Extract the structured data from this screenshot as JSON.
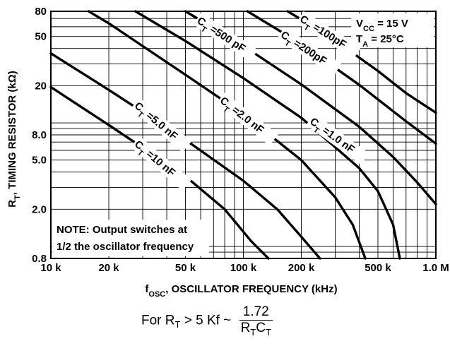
{
  "chart_data": {
    "type": "line",
    "x_scale": "log",
    "y_scale": "log",
    "xlim": [
      10,
      1000
    ],
    "ylim": [
      0.8,
      80
    ],
    "x_ticks": [
      {
        "value": 10,
        "label": "10 k"
      },
      {
        "value": 20,
        "label": "20 k"
      },
      {
        "value": 50,
        "label": "50 k"
      },
      {
        "value": 100,
        "label": "100 k"
      },
      {
        "value": 200,
        "label": "200 k"
      },
      {
        "value": 500,
        "label": "500 k"
      },
      {
        "value": 1000,
        "label": "1.0 M"
      }
    ],
    "y_ticks": [
      {
        "value": 80,
        "label": "80"
      },
      {
        "value": 50,
        "label": "50"
      },
      {
        "value": 20,
        "label": "20"
      },
      {
        "value": 8,
        "label": "8.0"
      },
      {
        "value": 5,
        "label": "5.0"
      },
      {
        "value": 2,
        "label": "2.0"
      },
      {
        "value": 0.8,
        "label": "0.8"
      }
    ],
    "xlabel": {
      "main": "f",
      "sub": "OSC",
      "rest": ", OSCILLATOR FREQUENCY (kHz)"
    },
    "ylabel": {
      "main": "R",
      "sub": "T",
      "rest": ", TIMING RESISTOR (kΩ)"
    },
    "grid": true,
    "conditions": [
      {
        "main": "V",
        "sub": "CC",
        "rest": " = 15 V"
      },
      {
        "main": "T",
        "sub": "A",
        "rest": " = 25°C"
      }
    ],
    "note": [
      "NOTE: Output switches at",
      "1/2 the oscillator frequency"
    ],
    "series": [
      {
        "name": "10 nF",
        "x": [
          10,
          20,
          50,
          80,
          110,
          135
        ],
        "y": [
          19.5,
          9.6,
          3.7,
          2.0,
          1.1,
          0.8
        ]
      },
      {
        "name": "5.0 nF",
        "x": [
          10,
          20,
          50,
          100,
          150,
          200,
          250
        ],
        "y": [
          36.5,
          18.5,
          7.3,
          3.4,
          2.0,
          1.2,
          0.8
        ]
      },
      {
        "name": "2.0 nF",
        "x": [
          15.7,
          20,
          50,
          100,
          200,
          300,
          370,
          430
        ],
        "y": [
          80,
          64,
          24.5,
          11.8,
          5.0,
          2.5,
          1.5,
          0.8
        ]
      },
      {
        "name": "1.0 nF",
        "x": [
          27.5,
          50,
          100,
          200,
          400,
          500,
          600,
          650
        ],
        "y": [
          80,
          46,
          23,
          11,
          4.3,
          2.8,
          1.5,
          0.8
        ]
      },
      {
        "name": "500 pF",
        "x": [
          50,
          100,
          200,
          400,
          600,
          800,
          1000
        ],
        "y": [
          80,
          42,
          20.5,
          9.3,
          5.3,
          3.3,
          2.2
        ]
      },
      {
        "name": "200pF",
        "x": [
          105,
          200,
          400,
          700,
          1000
        ],
        "y": [
          80,
          43.5,
          20.3,
          10.3,
          6.8
        ]
      },
      {
        "name": "100pF",
        "x": [
          170,
          300,
          500,
          700,
          1000
        ],
        "y": [
          80,
          46.5,
          26.3,
          17.4,
          12.1
        ]
      }
    ],
    "curve_labels": [
      {
        "series": "10 nF",
        "text_main": "C",
        "text_sub": "T",
        "text_rest": " =10 nF"
      },
      {
        "series": "5.0 nF",
        "text_main": "C",
        "text_sub": "T",
        "text_rest": " =5.0 nF"
      },
      {
        "series": "2.0 nF",
        "text_main": "C",
        "text_sub": "T",
        "text_rest": " =2.0 nF"
      },
      {
        "series": "1.0 nF",
        "text_main": "C",
        "text_sub": "T",
        "text_rest": " =1.0 nF"
      },
      {
        "series": "500 pF",
        "text_main": "C",
        "text_sub": "T",
        "text_rest": " =500 pF"
      },
      {
        "series": "200pF",
        "text_main": "C",
        "text_sub": "T",
        "text_rest": " =200pF"
      },
      {
        "series": "100pF",
        "text_main": "C",
        "text_sub": "T",
        "text_rest": " =100pF"
      }
    ]
  },
  "formula": {
    "prefix": "For R",
    "prefix_sub": "T",
    "condition": " > 5 Kf ~",
    "numerator": "1.72",
    "den_r": "R",
    "den_r_sub": "T",
    "den_c": "C",
    "den_c_sub": "T"
  }
}
